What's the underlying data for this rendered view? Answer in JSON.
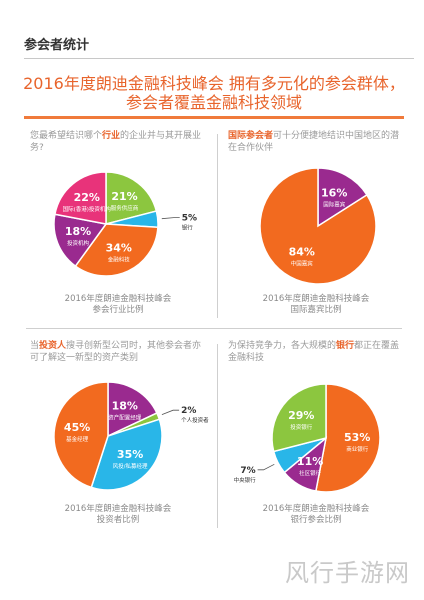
{
  "header": {
    "title": "参会者统计"
  },
  "poster": {
    "title_line1": "2016年度朗迪金融科技峰会 拥有多元化的参会群体，",
    "title_line2": "参会者覆盖金融科技领域"
  },
  "colors": {
    "orange": "#f26a1f",
    "green": "#8cc63f",
    "cyan": "#29b6e8",
    "purple": "#9a2a8f",
    "pink": "#e8337a",
    "accent_text": "#e8642c"
  },
  "watermark": "风行手游网",
  "chart_data": [
    {
      "type": "pie",
      "question_pre": "您最希望结识哪个",
      "question_hl": "行业",
      "question_post": "的企业并与其开展业务?",
      "caption_line1": "2016年度朗迪金融科技峰会",
      "caption_line2": "参会行业比例",
      "slices": [
        {
          "pct": "21%",
          "value": 21,
          "label": "服务供应商",
          "color": "#8cc63f"
        },
        {
          "pct": "5%",
          "value": 5,
          "label": "银行",
          "color": "#29b6e8"
        },
        {
          "pct": "34%",
          "value": 34,
          "label": "金融科技",
          "color": "#f26a1f"
        },
        {
          "pct": "18%",
          "value": 18,
          "label": "投资机构",
          "color": "#9a2a8f"
        },
        {
          "pct": "22%",
          "value": 22,
          "label": "国际(香港)投资机构",
          "color": "#e8337a"
        }
      ]
    },
    {
      "type": "pie",
      "question_hl": "国际参会者",
      "question_post": "可十分便捷地结识中国地区的潜在合作伙伴",
      "caption_line1": "2016年度朗迪金融科技峰会",
      "caption_line2": "国际嘉宾比例",
      "slices": [
        {
          "pct": "16%",
          "value": 16,
          "label": "国际嘉宾",
          "color": "#9a2a8f"
        },
        {
          "pct": "84%",
          "value": 84,
          "label": "中国嘉宾",
          "color": "#f26a1f"
        }
      ]
    },
    {
      "type": "pie",
      "question_pre": "当",
      "question_hl": "投资人",
      "question_post": "搜寻创新型公司时，其他参会者亦可了解这一新型的资产类别",
      "caption_line1": "2016年度朗迪金融科技峰会",
      "caption_line2": "投资者比例",
      "slices": [
        {
          "pct": "18%",
          "value": 18,
          "label": "资产配置经理",
          "color": "#9a2a8f"
        },
        {
          "pct": "2%",
          "value": 2,
          "label": "个人投资者",
          "color": "#8cc63f"
        },
        {
          "pct": "35%",
          "value": 35,
          "label": "风投/私募经理",
          "color": "#29b6e8"
        },
        {
          "pct": "45%",
          "value": 45,
          "label": "基金经理",
          "color": "#f26a1f"
        }
      ]
    },
    {
      "type": "pie",
      "question_pre": "为保持竞争力，各大规模的",
      "question_hl": "银行",
      "question_post": "都正在覆盖金融科技",
      "caption_line1": "2016年度朗迪金融科技峰会",
      "caption_line2": "银行参会比例",
      "slices": [
        {
          "pct": "53%",
          "value": 53,
          "label": "商业银行",
          "color": "#f26a1f"
        },
        {
          "pct": "11%",
          "value": 11,
          "label": "社区银行",
          "color": "#9a2a8f"
        },
        {
          "pct": "7%",
          "value": 7,
          "label": "中央银行",
          "color": "#29b6e8"
        },
        {
          "pct": "29%",
          "value": 29,
          "label": "投资银行",
          "color": "#8cc63f"
        }
      ]
    }
  ]
}
